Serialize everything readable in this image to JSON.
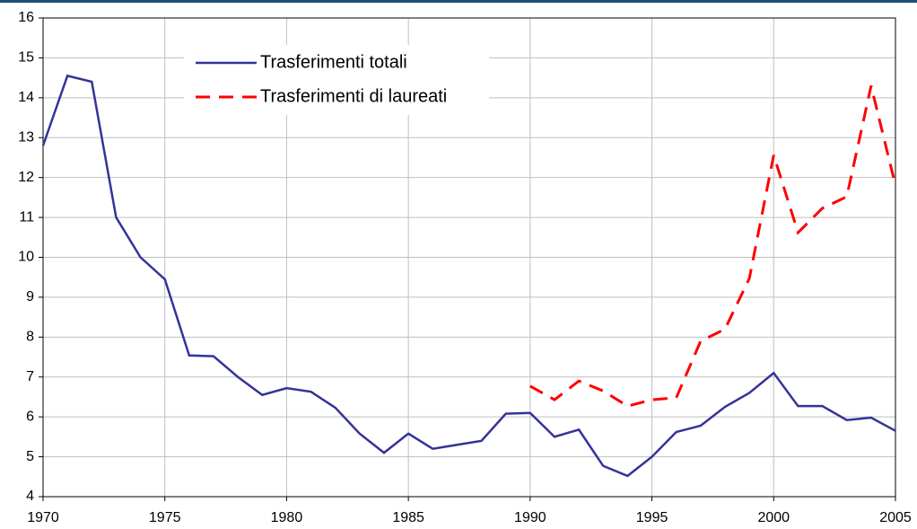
{
  "chart_data": {
    "type": "line",
    "x": [
      1970,
      1971,
      1972,
      1973,
      1974,
      1975,
      1976,
      1977,
      1978,
      1979,
      1980,
      1981,
      1982,
      1983,
      1984,
      1985,
      1986,
      1987,
      1988,
      1989,
      1990,
      1991,
      1992,
      1993,
      1994,
      1995,
      1996,
      1997,
      1998,
      1999,
      2000,
      2001,
      2002,
      2003,
      2004,
      2005
    ],
    "series": [
      {
        "name": "Trasferimenti totali",
        "color": "#333399",
        "dashed": false,
        "values": [
          12.8,
          14.55,
          14.4,
          11.0,
          10.0,
          9.45,
          7.54,
          7.52,
          7.0,
          6.55,
          6.72,
          6.63,
          6.23,
          5.58,
          5.1,
          5.58,
          5.2,
          5.3,
          5.4,
          6.08,
          6.1,
          5.5,
          5.68,
          4.77,
          4.52,
          5.0,
          5.62,
          5.78,
          6.25,
          6.6,
          7.1,
          6.27,
          6.27,
          5.92,
          5.98,
          5.65
        ]
      },
      {
        "name": "Trasferimenti di laureati",
        "color": "#ff0000",
        "dashed": true,
        "values": [
          null,
          null,
          null,
          null,
          null,
          null,
          null,
          null,
          null,
          null,
          null,
          null,
          null,
          null,
          null,
          null,
          null,
          null,
          null,
          null,
          6.77,
          6.43,
          6.9,
          6.65,
          6.27,
          6.43,
          6.48,
          7.9,
          8.2,
          9.47,
          12.56,
          10.62,
          11.23,
          11.52,
          14.3,
          11.8
        ]
      }
    ],
    "xlim": [
      1970,
      2005
    ],
    "xticks": [
      1970,
      1975,
      1980,
      1985,
      1990,
      1995,
      2000,
      2005
    ],
    "ylim": [
      4,
      16
    ],
    "yticks": [
      4,
      5,
      6,
      7,
      8,
      9,
      10,
      11,
      12,
      13,
      14,
      15,
      16
    ],
    "grid": true
  }
}
